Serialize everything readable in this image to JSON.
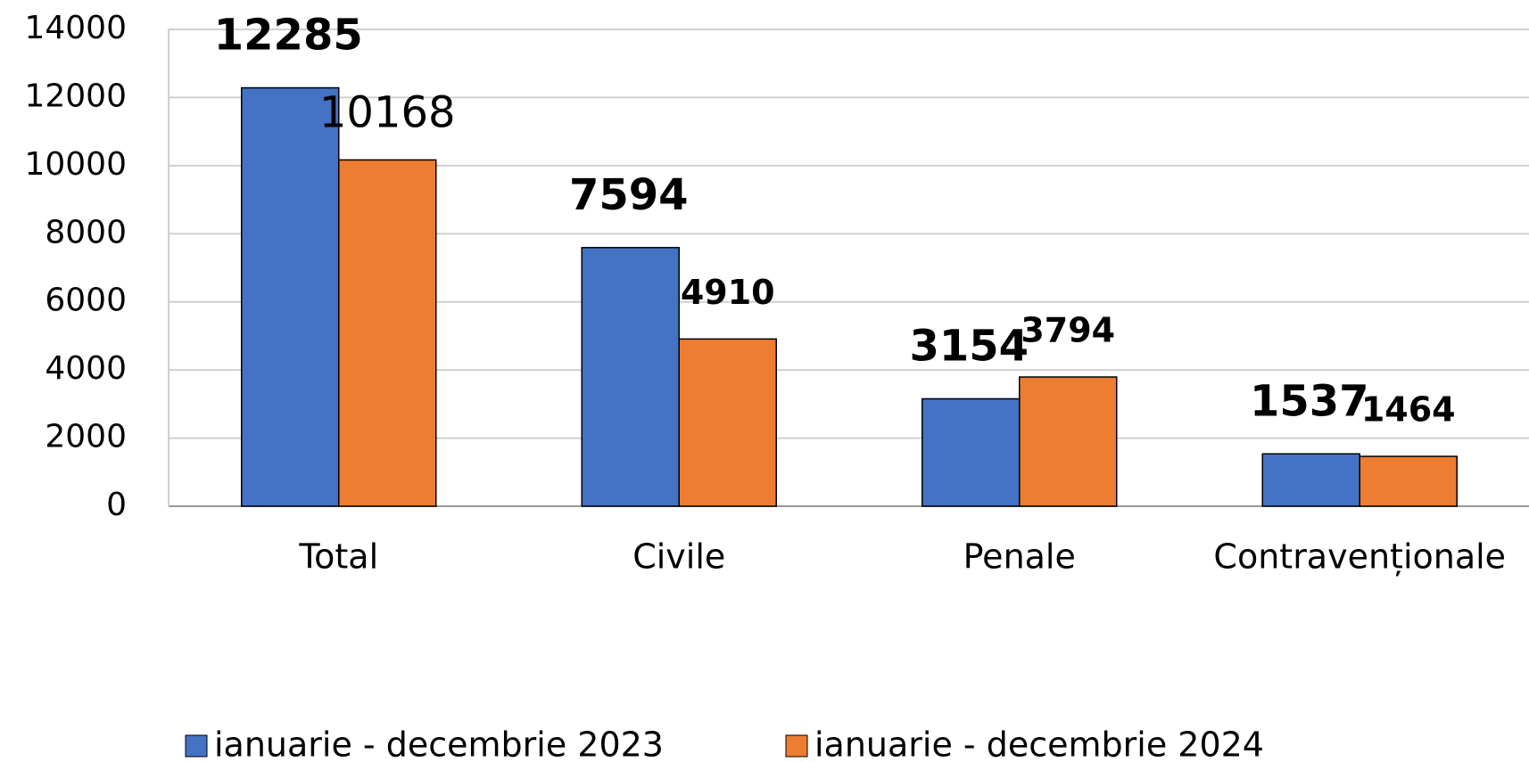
{
  "chart_data": {
    "type": "bar",
    "categories": [
      "Total",
      "Civile",
      "Penale",
      "Contravenționale"
    ],
    "series": [
      {
        "name": "ianuarie - decembrie 2023",
        "color": "#4472c4",
        "values": [
          12285,
          7594,
          3154,
          1537
        ]
      },
      {
        "name": "ianuarie - decembrie 2024",
        "color": "#ed7d31",
        "values": [
          10168,
          4910,
          3794,
          1464
        ]
      }
    ],
    "ylim": [
      0,
      14000
    ],
    "yticks": [
      0,
      2000,
      4000,
      6000,
      8000,
      10000,
      12000,
      14000
    ],
    "grid": true,
    "legend": "bottom"
  }
}
